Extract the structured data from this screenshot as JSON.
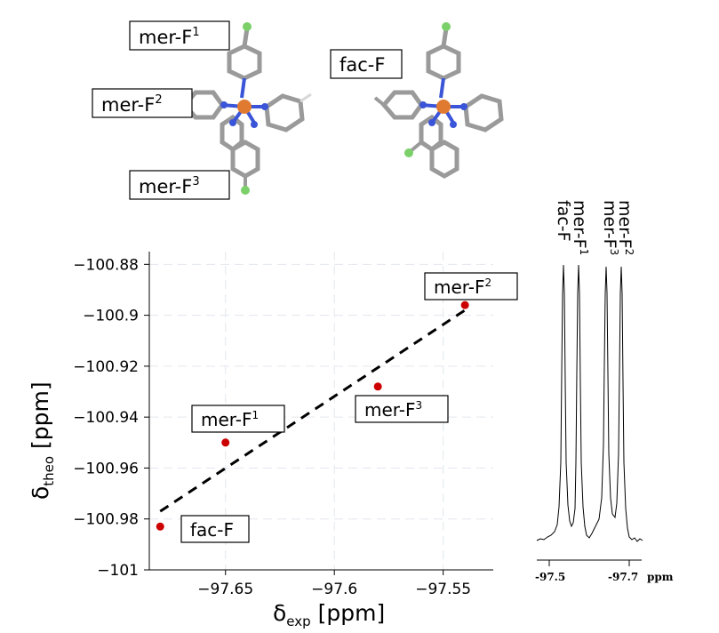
{
  "molecules": {
    "mer": {
      "labels": [
        {
          "text": "mer-F",
          "sup": "1"
        },
        {
          "text": "mer-F",
          "sup": "2"
        },
        {
          "text": "mer-F",
          "sup": "3"
        }
      ]
    },
    "fac": {
      "label": "fac-F"
    }
  },
  "chart_data": {
    "type": "scatter",
    "title": "",
    "xlabel": {
      "main": "δ",
      "sub": "exp",
      "unit": "[ppm]"
    },
    "ylabel": {
      "main": "δ",
      "sub": "theo",
      "unit": "[ppm]"
    },
    "xlim": [
      -97.685,
      -97.527
    ],
    "ylim": [
      -101.0,
      -100.875
    ],
    "xticks": [
      -97.65,
      -97.6,
      -97.55
    ],
    "xtick_labels": [
      "−97.65",
      "−97.6",
      "−97.55"
    ],
    "yticks": [
      -100.88,
      -100.9,
      -100.92,
      -100.94,
      -100.96,
      -100.98,
      -101.0
    ],
    "ytick_labels": [
      "−100.88",
      "−100.9",
      "−100.92",
      "−100.94",
      "−100.96",
      "−100.98",
      "−101"
    ],
    "grid": true,
    "marker_color": "#cc0000",
    "points": [
      {
        "label": "fac-F",
        "sup": "",
        "x": -97.68,
        "y": -100.983
      },
      {
        "label": "mer-F",
        "sup": "1",
        "x": -97.65,
        "y": -100.95
      },
      {
        "label": "mer-F",
        "sup": "3",
        "x": -97.58,
        "y": -100.928
      },
      {
        "label": "mer-F",
        "sup": "2",
        "x": -97.54,
        "y": -100.896
      }
    ],
    "fit_line": {
      "style": "dashed",
      "x": [
        -97.68,
        -97.54
      ],
      "y": [
        -100.977,
        -100.898
      ]
    }
  },
  "spectrum": {
    "peak_labels": [
      {
        "text": "fac-F",
        "sup": ""
      },
      {
        "text": "mer-F",
        "sup": "1"
      },
      {
        "text": "mer-F",
        "sup": "3"
      },
      {
        "text": "mer-F",
        "sup": "2"
      }
    ],
    "axis_ticks": [
      "-97.5",
      "-97.7"
    ],
    "axis_unit": "ppm"
  }
}
